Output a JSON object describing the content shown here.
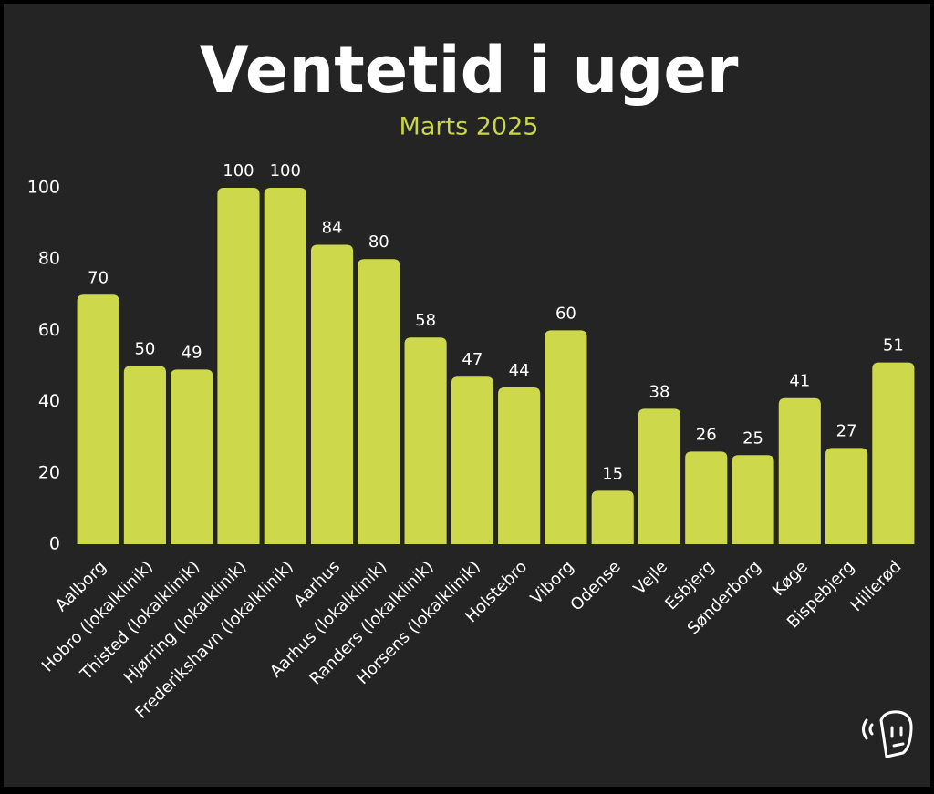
{
  "chart_data": {
    "type": "bar",
    "title": "Ventetid i uger",
    "subtitle": "Marts 2025",
    "categories": [
      "Aalborg",
      "Hobro (lokalklinik)",
      "Thisted (lokalklinik)",
      "Hjørring (lokalklinik)",
      "Frederikshavn (lokalklinik)",
      "Aarhus",
      "Aarhus (lokalklinik)",
      "Randers (lokalklinik)",
      "Horsens (lokalklinik)",
      "Holstebro",
      "Viborg",
      "Odense",
      "Vejle",
      "Esbjerg",
      "Sønderborg",
      "Køge",
      "Bispebjerg",
      "Hillerød"
    ],
    "values": [
      70,
      50,
      49,
      100,
      100,
      84,
      80,
      58,
      47,
      44,
      60,
      15,
      38,
      26,
      25,
      41,
      27,
      51
    ],
    "color": "#cdd94a",
    "ylim": [
      0,
      100
    ],
    "yticks": [
      0,
      20,
      40,
      60,
      80,
      100
    ],
    "grid": false
  }
}
